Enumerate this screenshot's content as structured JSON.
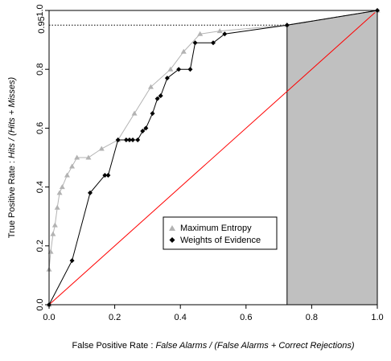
{
  "chart_data": {
    "type": "line",
    "title": "",
    "xlabel": {
      "prefix": "False Positive Rate : ",
      "formula": "False Alarms / (False Alarms + Correct Rejections)"
    },
    "ylabel": {
      "prefix": "True Positive Rate : ",
      "formula": "Hits / (Hits + Misses)"
    },
    "xlim": [
      0,
      1
    ],
    "ylim": [
      0,
      1
    ],
    "x_ticks": [
      "0.0",
      "0.2",
      "0.4",
      "0.6",
      "0.8",
      "1.0"
    ],
    "y_ticks": [
      "0.0",
      "0.2",
      "0.4",
      "0.6",
      "0.8",
      "1.0"
    ],
    "grid": false,
    "legend": {
      "placement": "center-right",
      "entries": [
        "Maximum Entropy",
        "Weights of Evidence"
      ]
    },
    "threshold": {
      "tpr": 0.95,
      "fpr": 0.725,
      "label": "0.95",
      "shaded_color": "#c0c0c0"
    },
    "reference_line": {
      "from": [
        0,
        0
      ],
      "to": [
        1,
        1
      ],
      "color": "#ff0000"
    },
    "series": [
      {
        "name": "Maximum Entropy",
        "color": "#b3b3b3",
        "marker": "triangle",
        "x": [
          0.0,
          0.0,
          0.005,
          0.012,
          0.018,
          0.025,
          0.032,
          0.04,
          0.055,
          0.07,
          0.085,
          0.12,
          0.16,
          0.21,
          0.26,
          0.31,
          0.37,
          0.41,
          0.46,
          0.52,
          0.725,
          1.0
        ],
        "y": [
          0.0,
          0.12,
          0.18,
          0.24,
          0.27,
          0.33,
          0.38,
          0.4,
          0.44,
          0.47,
          0.5,
          0.5,
          0.53,
          0.56,
          0.65,
          0.74,
          0.8,
          0.86,
          0.92,
          0.93,
          0.95,
          1.0
        ]
      },
      {
        "name": "Weights of Evidence",
        "color": "#000000",
        "marker": "diamond",
        "x": [
          0.0,
          0.07,
          0.125,
          0.17,
          0.18,
          0.21,
          0.235,
          0.245,
          0.255,
          0.27,
          0.285,
          0.295,
          0.315,
          0.33,
          0.34,
          0.36,
          0.395,
          0.43,
          0.445,
          0.5,
          0.535,
          0.725,
          1.0
        ],
        "y": [
          0.0,
          0.15,
          0.38,
          0.44,
          0.44,
          0.56,
          0.56,
          0.56,
          0.56,
          0.56,
          0.59,
          0.6,
          0.65,
          0.7,
          0.71,
          0.77,
          0.8,
          0.8,
          0.89,
          0.89,
          0.92,
          0.95,
          1.0
        ]
      }
    ]
  }
}
